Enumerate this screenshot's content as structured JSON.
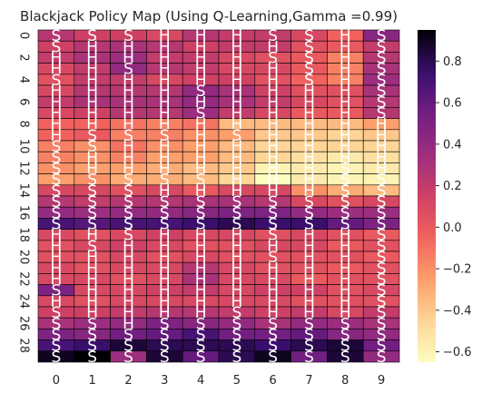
{
  "chart_data": {
    "type": "heatmap",
    "title": "Blackjack Policy Map (Using Q-Learning,Gamma =0.99)",
    "xlabel": "",
    "ylabel": "",
    "x_ticks": [
      "0",
      "1",
      "2",
      "3",
      "4",
      "5",
      "6",
      "7",
      "8",
      "9"
    ],
    "y_ticks": [
      "0",
      "2",
      "4",
      "6",
      "8",
      "10",
      "12",
      "14",
      "16",
      "18",
      "20",
      "22",
      "24",
      "26",
      "28"
    ],
    "colorbar": {
      "vmin": -0.65,
      "vmax": 0.95,
      "ticks": [
        0.8,
        0.6,
        0.4,
        0.2,
        0.0,
        -0.2,
        -0.4,
        -0.6
      ],
      "tick_labels": [
        "0.8",
        "0.6",
        "0.4",
        "0.2",
        "0.0",
        "−0.2",
        "−0.4",
        "−0.6"
      ]
    },
    "colormap": "magma_r",
    "grid": true,
    "values": [
      [
        0.25,
        0.15,
        0.15,
        0.1,
        0.25,
        0.2,
        0.2,
        0.1,
        -0.05,
        0.45
      ],
      [
        0.15,
        0.25,
        0.3,
        0.25,
        0.15,
        0.2,
        0.2,
        0.05,
        0.0,
        0.2
      ],
      [
        0.2,
        0.3,
        0.35,
        0.2,
        0.2,
        0.1,
        0.05,
        0.0,
        -0.15,
        0.25
      ],
      [
        0.1,
        0.2,
        0.4,
        0.25,
        0.2,
        0.1,
        0.1,
        0.0,
        -0.15,
        0.3
      ],
      [
        0.05,
        0.2,
        0.2,
        0.1,
        0.15,
        0.15,
        0.05,
        -0.05,
        -0.15,
        0.35
      ],
      [
        0.1,
        0.25,
        0.25,
        0.25,
        0.4,
        0.3,
        0.15,
        0.05,
        0.05,
        0.3
      ],
      [
        0.2,
        0.3,
        0.3,
        0.3,
        0.4,
        0.3,
        0.2,
        0.1,
        0.05,
        0.25
      ],
      [
        0.1,
        0.15,
        0.25,
        0.25,
        0.35,
        0.2,
        0.1,
        0.0,
        0.0,
        0.25
      ],
      [
        -0.05,
        -0.05,
        -0.1,
        -0.15,
        -0.1,
        -0.35,
        -0.35,
        -0.35,
        -0.35,
        -0.25
      ],
      [
        -0.05,
        0.0,
        -0.15,
        -0.15,
        -0.2,
        -0.25,
        -0.4,
        -0.4,
        -0.45,
        -0.4
      ],
      [
        -0.15,
        -0.2,
        -0.1,
        -0.2,
        -0.25,
        -0.35,
        -0.45,
        -0.45,
        -0.45,
        -0.45
      ],
      [
        -0.15,
        -0.2,
        -0.15,
        -0.25,
        -0.25,
        -0.35,
        -0.45,
        -0.5,
        -0.55,
        -0.5
      ],
      [
        -0.2,
        -0.25,
        -0.25,
        -0.3,
        -0.35,
        -0.4,
        -0.6,
        -0.55,
        -0.6,
        -0.55
      ],
      [
        -0.25,
        -0.2,
        -0.3,
        -0.3,
        -0.35,
        -0.45,
        -0.65,
        -0.55,
        -0.6,
        -0.6
      ],
      [
        0.1,
        0.1,
        0.05,
        0.1,
        0.0,
        0.1,
        0.1,
        -0.2,
        -0.3,
        -0.35
      ],
      [
        0.25,
        0.2,
        0.25,
        0.25,
        0.3,
        0.3,
        0.25,
        0.1,
        0.05,
        0.1
      ],
      [
        0.4,
        0.35,
        0.4,
        0.4,
        0.45,
        0.5,
        0.5,
        0.4,
        0.35,
        0.35
      ],
      [
        0.7,
        0.65,
        0.7,
        0.7,
        0.75,
        0.8,
        0.75,
        0.75,
        0.6,
        0.5
      ],
      [
        0.1,
        0.05,
        0.1,
        0.15,
        0.1,
        0.1,
        0.05,
        0.1,
        0.05,
        0.0
      ],
      [
        0.05,
        0.1,
        0.15,
        0.1,
        0.05,
        0.05,
        0.1,
        0.1,
        0.0,
        0.05
      ],
      [
        0.05,
        0.05,
        0.1,
        0.05,
        0.1,
        0.05,
        0.05,
        0.05,
        0.05,
        0.0
      ],
      [
        0.1,
        0.05,
        0.1,
        0.1,
        0.25,
        0.1,
        0.05,
        0.05,
        0.0,
        0.05
      ],
      [
        0.1,
        0.1,
        0.05,
        0.1,
        0.3,
        0.1,
        0.1,
        0.0,
        0.05,
        0.05
      ],
      [
        0.5,
        0.1,
        0.1,
        0.15,
        0.2,
        0.1,
        0.15,
        0.15,
        0.05,
        0.1
      ],
      [
        0.1,
        0.05,
        0.1,
        0.1,
        0.1,
        0.1,
        0.1,
        0.05,
        0.05,
        0.05
      ],
      [
        0.15,
        0.15,
        0.2,
        0.25,
        0.25,
        0.2,
        0.15,
        0.2,
        0.1,
        0.2
      ],
      [
        0.3,
        0.35,
        0.4,
        0.5,
        0.45,
        0.4,
        0.3,
        0.4,
        0.35,
        0.3
      ],
      [
        0.5,
        0.45,
        0.55,
        0.6,
        0.7,
        0.55,
        0.55,
        0.6,
        0.45,
        0.4
      ],
      [
        0.7,
        0.75,
        0.85,
        0.8,
        0.8,
        0.8,
        0.75,
        0.8,
        0.85,
        0.55
      ],
      [
        0.9,
        0.95,
        0.35,
        0.85,
        0.6,
        0.8,
        0.9,
        0.55,
        0.85,
        0.4
      ]
    ],
    "annotations": [
      [
        "S",
        "S",
        "S",
        "H",
        "H",
        "H",
        "S",
        "S",
        "H",
        "S"
      ],
      [
        "S",
        "H",
        "H",
        "H",
        "H",
        "H",
        "H",
        "S",
        "H",
        "S"
      ],
      [
        "H",
        "H",
        "H",
        "H",
        "H",
        "H",
        "S",
        "S",
        "H",
        "S"
      ],
      [
        "H",
        "H",
        "S",
        "H",
        "H",
        "H",
        "H",
        "S",
        "H",
        "S"
      ],
      [
        "S",
        "H",
        "H",
        "H",
        "H",
        "H",
        "H",
        "S",
        "H",
        "S"
      ],
      [
        "H",
        "H",
        "H",
        "H",
        "S",
        "H",
        "H",
        "H",
        "H",
        "S"
      ],
      [
        "H",
        "H",
        "H",
        "H",
        "H",
        "H",
        "H",
        "H",
        "H",
        "S"
      ],
      [
        "H",
        "H",
        "H",
        "H",
        "S",
        "H",
        "H",
        "H",
        "H",
        "S"
      ],
      [
        "H",
        "H",
        "H",
        "H",
        "H",
        "H",
        "H",
        "H",
        "H",
        "H"
      ],
      [
        "H",
        "S",
        "S",
        "S",
        "H",
        "S",
        "H",
        "H",
        "H",
        "H"
      ],
      [
        "S",
        "S",
        "H",
        "H",
        "H",
        "H",
        "H",
        "H",
        "H",
        "H"
      ],
      [
        "S",
        "H",
        "H",
        "H",
        "H",
        "H",
        "H",
        "H",
        "H",
        "H"
      ],
      [
        "S",
        "H",
        "H",
        "H",
        "H",
        "H",
        "H",
        "H",
        "S",
        "H"
      ],
      [
        "S",
        "S",
        "S",
        "S",
        "S",
        "H",
        "H",
        "H",
        "S",
        "S"
      ],
      [
        "S",
        "S",
        "S",
        "H",
        "H",
        "H",
        "H",
        "H",
        "S",
        "S"
      ],
      [
        "S",
        "S",
        "S",
        "S",
        "S",
        "S",
        "S",
        "S",
        "S",
        "S"
      ],
      [
        "S",
        "S",
        "S",
        "S",
        "S",
        "S",
        "S",
        "S",
        "S",
        "S"
      ],
      [
        "S",
        "S",
        "S",
        "S",
        "S",
        "S",
        "S",
        "S",
        "S",
        "S"
      ],
      [
        "H",
        "H",
        "S",
        "H",
        "H",
        "H",
        "S",
        "H",
        "H",
        "S"
      ],
      [
        "H",
        "S",
        "H",
        "H",
        "H",
        "H",
        "H",
        "H",
        "H",
        "S"
      ],
      [
        "H",
        "H",
        "H",
        "H",
        "H",
        "H",
        "S",
        "H",
        "H",
        "S"
      ],
      [
        "H",
        "H",
        "H",
        "H",
        "H",
        "H",
        "H",
        "H",
        "H",
        "S"
      ],
      [
        "H",
        "H",
        "H",
        "H",
        "H",
        "H",
        "H",
        "H",
        "H",
        "S"
      ],
      [
        "S",
        "H",
        "H",
        "H",
        "H",
        "H",
        "H",
        "H",
        "H",
        "S"
      ],
      [
        "H",
        "H",
        "H",
        "H",
        "H",
        "H",
        "H",
        "H",
        "H",
        "S"
      ],
      [
        "S",
        "H",
        "H",
        "H",
        "H",
        "S",
        "H",
        "H",
        "H",
        "S"
      ],
      [
        "S",
        "S",
        "H",
        "S",
        "S",
        "S",
        "S",
        "S",
        "S",
        "S"
      ],
      [
        "S",
        "S",
        "S",
        "S",
        "S",
        "S",
        "S",
        "S",
        "S",
        "S"
      ],
      [
        "S",
        "S",
        "S",
        "S",
        "S",
        "S",
        "S",
        "S",
        "S",
        "S"
      ],
      [
        "S",
        "S",
        "S",
        "S",
        "S",
        "S",
        "S",
        "S",
        "S",
        "S"
      ]
    ]
  }
}
